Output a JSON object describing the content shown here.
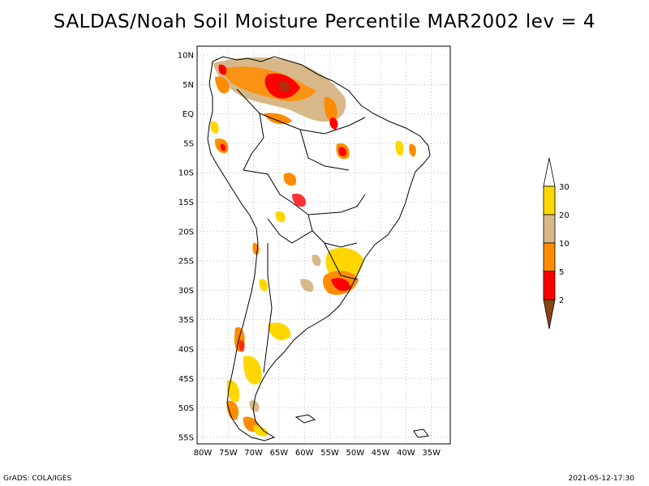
{
  "title": "SALDAS/Noah Soil Moisture Percentile MAR2002 lev = 4",
  "map": {
    "lat_labels": [
      "10N",
      "5N",
      "EQ",
      "5S",
      "10S",
      "15S",
      "20S",
      "25S",
      "30S",
      "35S",
      "40S",
      "45S",
      "50S",
      "55S"
    ],
    "lon_labels": [
      "80W",
      "75W",
      "70W",
      "65W",
      "60W",
      "55W",
      "50W",
      "45W",
      "40W",
      "35W"
    ]
  },
  "colorbar": {
    "levels": [
      "30",
      "20",
      "10",
      "5",
      "2"
    ],
    "colors": {
      "above30": "#ffffff",
      "c20_30": "#ffd700",
      "c10_20": "#d8b888",
      "c5_10": "#ff8c00",
      "c2_5": "#ff0000",
      "below2": "#8b4513"
    }
  },
  "footer": {
    "left": "GrADS: COLA/IGES",
    "right": "2021-05-12-17:30"
  }
}
